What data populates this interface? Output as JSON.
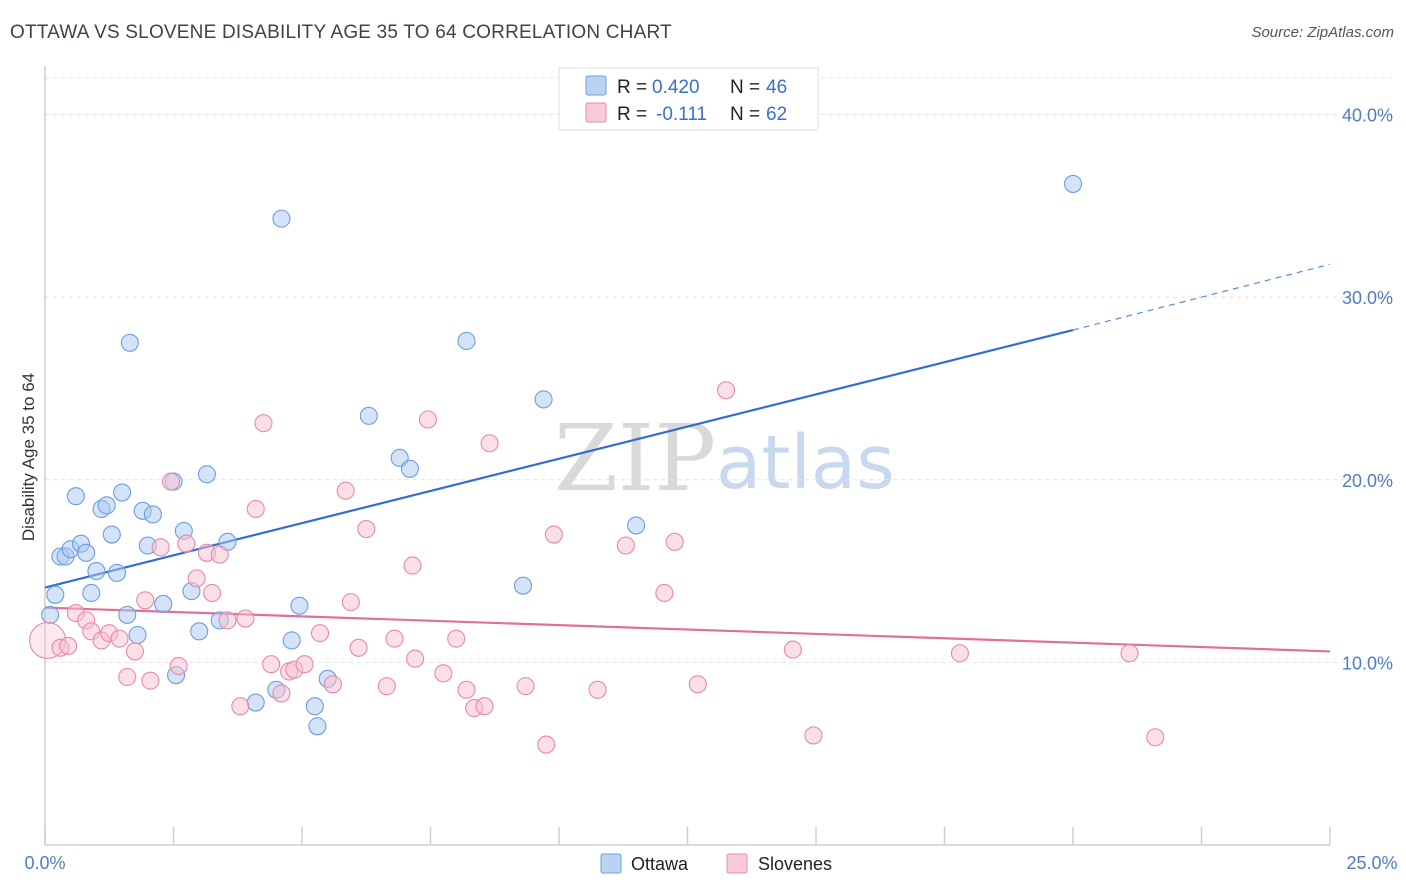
{
  "title": "OTTAWA VS SLOVENE DISABILITY AGE 35 TO 64 CORRELATION CHART",
  "source": "Source: ZipAtlas.com",
  "watermark": {
    "zip": "ZIP",
    "atlas": "atlas"
  },
  "legend": {
    "r_label": "R =",
    "n_label": "N =",
    "entries": [
      {
        "r": "0.420",
        "n": "46",
        "color": "#aac8f0",
        "stroke": "#6d9ee0"
      },
      {
        "r": "-0.111",
        "n": "62",
        "color": "#f7bfd0",
        "stroke": "#e889a8"
      }
    ]
  },
  "chart_data": {
    "type": "scatter",
    "title": "OTTAWA VS SLOVENE DISABILITY AGE 35 TO 64 CORRELATION CHART",
    "xlabel": "",
    "ylabel": "Disability Age 35 to 64",
    "xlim": [
      0,
      25
    ],
    "ylim": [
      0,
      42
    ],
    "x_tick_labels": [
      "0.0%",
      "25.0%"
    ],
    "y_ticks": [
      10,
      20,
      30,
      40
    ],
    "y_tick_labels": [
      "10.0%",
      "20.0%",
      "30.0%",
      "40.0%"
    ],
    "grid": true,
    "legend_position": "top-center",
    "series": [
      {
        "name": "Ottawa",
        "color": "#aac8f0",
        "stroke": "#6d9ee0",
        "line_color": "#2f6fd0",
        "trend": {
          "x0": 0,
          "y0": 14.1,
          "x1": 20.0,
          "y1": 28.2,
          "dash_to_x": 25.0,
          "dash_to_y": 31.8
        },
        "points": [
          [
            0.1,
            12.6
          ],
          [
            0.2,
            13.7
          ],
          [
            0.3,
            15.8
          ],
          [
            0.4,
            15.8
          ],
          [
            0.5,
            16.2
          ],
          [
            0.6,
            19.1
          ],
          [
            0.7,
            16.5
          ],
          [
            0.8,
            16.0
          ],
          [
            0.9,
            13.8
          ],
          [
            1.0,
            15.0
          ],
          [
            1.1,
            18.4
          ],
          [
            1.2,
            18.6
          ],
          [
            1.3,
            17.0
          ],
          [
            1.4,
            14.9
          ],
          [
            1.5,
            19.3
          ],
          [
            1.6,
            12.6
          ],
          [
            1.65,
            27.5
          ],
          [
            1.8,
            11.5
          ],
          [
            1.9,
            18.3
          ],
          [
            2.0,
            16.4
          ],
          [
            2.1,
            18.1
          ],
          [
            2.3,
            13.2
          ],
          [
            2.5,
            19.9
          ],
          [
            2.55,
            9.3
          ],
          [
            2.7,
            17.2
          ],
          [
            2.85,
            13.9
          ],
          [
            3.0,
            11.7
          ],
          [
            3.15,
            20.3
          ],
          [
            3.4,
            12.3
          ],
          [
            3.55,
            16.6
          ],
          [
            4.1,
            7.8
          ],
          [
            4.5,
            8.5
          ],
          [
            4.6,
            34.3
          ],
          [
            4.8,
            11.2
          ],
          [
            4.95,
            13.1
          ],
          [
            5.25,
            7.6
          ],
          [
            5.3,
            6.5
          ],
          [
            5.5,
            9.1
          ],
          [
            6.3,
            23.5
          ],
          [
            6.9,
            21.2
          ],
          [
            7.1,
            20.6
          ],
          [
            8.2,
            27.6
          ],
          [
            9.3,
            14.2
          ],
          [
            9.7,
            24.4
          ],
          [
            11.5,
            17.5
          ],
          [
            20.0,
            36.2
          ]
        ]
      },
      {
        "name": "Slovenes",
        "color": "#f7bfd0",
        "stroke": "#e889a8",
        "line_color": "#e07098",
        "trend": {
          "x0": 0,
          "y0": 13.0,
          "x1": 25.0,
          "y1": 10.6
        },
        "points": [
          [
            0.05,
            11.2
          ],
          [
            0.3,
            10.8
          ],
          [
            0.45,
            10.9
          ],
          [
            0.6,
            12.7
          ],
          [
            0.8,
            12.3
          ],
          [
            0.9,
            11.7
          ],
          [
            1.1,
            11.2
          ],
          [
            1.25,
            11.6
          ],
          [
            1.45,
            11.3
          ],
          [
            1.6,
            9.2
          ],
          [
            1.75,
            10.6
          ],
          [
            1.95,
            13.4
          ],
          [
            2.05,
            9.0
          ],
          [
            2.25,
            16.3
          ],
          [
            2.45,
            19.9
          ],
          [
            2.6,
            9.8
          ],
          [
            2.75,
            16.5
          ],
          [
            2.95,
            14.6
          ],
          [
            3.15,
            16.0
          ],
          [
            3.25,
            13.8
          ],
          [
            3.4,
            15.9
          ],
          [
            3.55,
            12.3
          ],
          [
            3.8,
            7.6
          ],
          [
            3.9,
            12.4
          ],
          [
            4.1,
            18.4
          ],
          [
            4.25,
            23.1
          ],
          [
            4.4,
            9.9
          ],
          [
            4.6,
            8.3
          ],
          [
            4.75,
            9.5
          ],
          [
            4.85,
            9.6
          ],
          [
            5.05,
            9.9
          ],
          [
            5.35,
            11.6
          ],
          [
            5.6,
            8.8
          ],
          [
            5.85,
            19.4
          ],
          [
            5.95,
            13.3
          ],
          [
            6.1,
            10.8
          ],
          [
            6.25,
            17.3
          ],
          [
            6.65,
            8.7
          ],
          [
            6.8,
            11.3
          ],
          [
            7.15,
            15.3
          ],
          [
            7.2,
            10.2
          ],
          [
            7.45,
            23.3
          ],
          [
            7.75,
            9.4
          ],
          [
            8.0,
            11.3
          ],
          [
            8.2,
            8.5
          ],
          [
            8.35,
            7.5
          ],
          [
            8.55,
            7.6
          ],
          [
            8.65,
            22.0
          ],
          [
            9.35,
            8.7
          ],
          [
            9.75,
            5.5
          ],
          [
            9.9,
            17.0
          ],
          [
            10.75,
            8.5
          ],
          [
            11.3,
            16.4
          ],
          [
            12.05,
            13.8
          ],
          [
            12.25,
            16.6
          ],
          [
            12.7,
            8.8
          ],
          [
            13.25,
            24.9
          ],
          [
            14.55,
            10.7
          ],
          [
            14.95,
            6.0
          ],
          [
            17.8,
            10.5
          ],
          [
            21.1,
            10.5
          ],
          [
            21.6,
            5.9
          ]
        ]
      }
    ]
  }
}
